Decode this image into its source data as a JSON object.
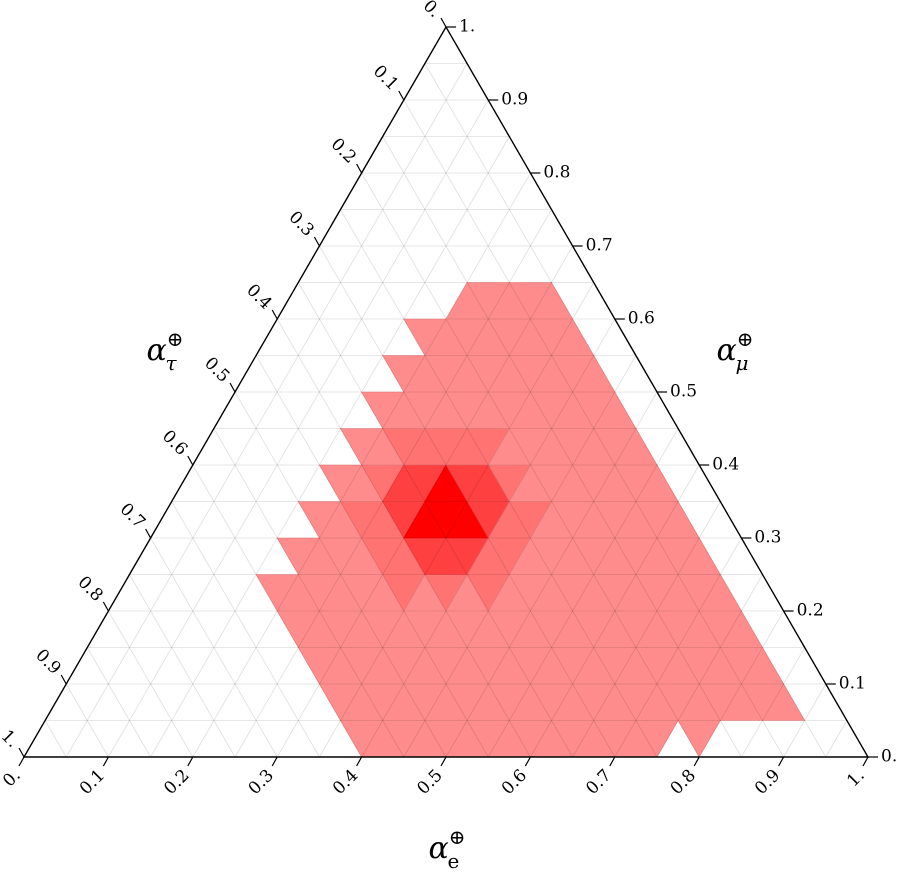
{
  "chart_data": {
    "type": "ternary",
    "color": "#ff0000",
    "grid": true,
    "bottom_axis": {
      "symbol": "α",
      "sub": "e",
      "sup": "⊕",
      "ticks": [
        {
          "value": 0,
          "label": "0."
        },
        0.1,
        0.2,
        0.3,
        0.4,
        0.5,
        0.6,
        0.7,
        0.8,
        0.9,
        {
          "value": 1,
          "label": "1."
        }
      ]
    },
    "right_axis": {
      "symbol": "α",
      "sub": "μ",
      "sup": "⊕",
      "ticks": [
        {
          "value": 0,
          "label": "0."
        },
        0.1,
        0.2,
        0.3,
        0.4,
        0.5,
        0.6,
        0.7,
        0.8,
        0.9,
        {
          "value": 1,
          "label": "1."
        }
      ]
    },
    "left_axis": {
      "symbol": "α",
      "sub": "τ",
      "sup": "⊕",
      "ticks": [
        {
          "value": 0,
          "label": "0."
        },
        0.1,
        0.2,
        0.3,
        0.4,
        0.5,
        0.6,
        0.7,
        0.8,
        0.9,
        {
          "value": 1,
          "label": "1."
        }
      ]
    },
    "minor_ticks": [
      0.05,
      0.15,
      0.25,
      0.35,
      0.45,
      0.55,
      0.65,
      0.75,
      0.85,
      0.95
    ],
    "density": [
      [
        0,
        0,
        0,
        0,
        0,
        0,
        0,
        0,
        0,
        0,
        0,
        0,
        0,
        0,
        0,
        0.45,
        0.45,
        0.45,
        0.45,
        0.45,
        0.45,
        0.45,
        0.45,
        0.45,
        0.45,
        0.45,
        0.45,
        0.45,
        0.45,
        0.45,
        0,
        0.45,
        0,
        0,
        0,
        0,
        0,
        0,
        0
      ],
      [
        0,
        0,
        0,
        0,
        0,
        0,
        0,
        0,
        0,
        0,
        0,
        0,
        0,
        0.45,
        0.45,
        0.45,
        0.45,
        0.45,
        0.45,
        0.45,
        0.45,
        0.45,
        0.45,
        0.45,
        0.45,
        0.45,
        0.45,
        0.45,
        0.45,
        0.45,
        0.45,
        0.45,
        0.45,
        0.45,
        0.45,
        0,
        0
      ],
      [
        0,
        0,
        0,
        0,
        0,
        0,
        0,
        0,
        0,
        0,
        0,
        0.45,
        0.45,
        0.45,
        0.45,
        0.45,
        0.45,
        0.45,
        0.45,
        0.45,
        0.45,
        0.45,
        0.45,
        0.45,
        0.45,
        0.45,
        0.45,
        0.45,
        0.45,
        0.45,
        0.45,
        0.45,
        0.45,
        0,
        0
      ],
      [
        0,
        0,
        0,
        0,
        0,
        0,
        0,
        0,
        0,
        0.45,
        0.45,
        0.45,
        0.45,
        0.45,
        0.45,
        0.45,
        0.45,
        0.45,
        0.45,
        0.45,
        0.45,
        0.45,
        0.45,
        0.45,
        0.45,
        0.45,
        0.45,
        0.45,
        0.45,
        0.45,
        0.45,
        0,
        0
      ],
      [
        0,
        0,
        0,
        0,
        0,
        0,
        0,
        0.45,
        0.45,
        0.45,
        0.45,
        0.45,
        0.45,
        0.55,
        0.45,
        0.55,
        0.45,
        0.55,
        0.45,
        0.45,
        0.45,
        0.45,
        0.45,
        0.45,
        0.45,
        0.45,
        0.45,
        0.45,
        0.45,
        0,
        0
      ],
      [
        0,
        0,
        0,
        0,
        0,
        0,
        0,
        0.45,
        0.45,
        0.45,
        0.45,
        0.55,
        0.55,
        0.75,
        0.75,
        0.75,
        0.55,
        0.55,
        0.45,
        0.45,
        0.45,
        0.45,
        0.45,
        0.45,
        0.45,
        0.45,
        0.45,
        0,
        0
      ],
      [
        0,
        0,
        0,
        0,
        0,
        0,
        0,
        0.45,
        0.45,
        0.55,
        0.55,
        0.75,
        1,
        1,
        1,
        0.75,
        0.55,
        0.55,
        0.45,
        0.45,
        0.45,
        0.45,
        0.45,
        0.45,
        0.45,
        0,
        0
      ],
      [
        0,
        0,
        0,
        0,
        0,
        0,
        0,
        0.45,
        0.45,
        0.55,
        0.75,
        0.75,
        1,
        0.75,
        0.75,
        0.55,
        0.45,
        0.45,
        0.45,
        0.45,
        0.45,
        0.45,
        0.45,
        0,
        0
      ],
      [
        0,
        0,
        0,
        0,
        0,
        0,
        0,
        0.45,
        0.45,
        0.55,
        0.55,
        0.55,
        0.55,
        0.55,
        0.45,
        0.45,
        0.45,
        0.45,
        0.45,
        0.45,
        0.45,
        0,
        0
      ],
      [
        0,
        0,
        0,
        0,
        0,
        0,
        0,
        0.45,
        0.45,
        0.45,
        0.45,
        0.45,
        0.45,
        0.45,
        0.45,
        0.45,
        0.45,
        0.45,
        0.45,
        0,
        0
      ],
      [
        0,
        0,
        0,
        0,
        0,
        0,
        0,
        0.45,
        0.45,
        0.45,
        0.45,
        0.45,
        0.45,
        0.45,
        0.45,
        0.45,
        0.45,
        0,
        0
      ],
      [
        0,
        0,
        0,
        0,
        0,
        0,
        0,
        0.45,
        0.45,
        0.45,
        0.45,
        0.45,
        0.45,
        0.45,
        0.45,
        0,
        0
      ],
      [
        0,
        0,
        0,
        0,
        0,
        0,
        0,
        0,
        0.45,
        0.45,
        0.45,
        0.45,
        0.45,
        0,
        0
      ],
      [
        0,
        0,
        0,
        0,
        0,
        0,
        0,
        0,
        0,
        0,
        0,
        0,
        0
      ],
      [
        0,
        0,
        0,
        0,
        0,
        0,
        0,
        0,
        0,
        0,
        0
      ],
      [
        0,
        0,
        0,
        0,
        0,
        0,
        0,
        0,
        0
      ],
      [
        0,
        0,
        0,
        0,
        0,
        0,
        0
      ],
      [
        0,
        0,
        0,
        0,
        0
      ],
      [
        0,
        0,
        0
      ],
      [
        0
      ]
    ]
  }
}
